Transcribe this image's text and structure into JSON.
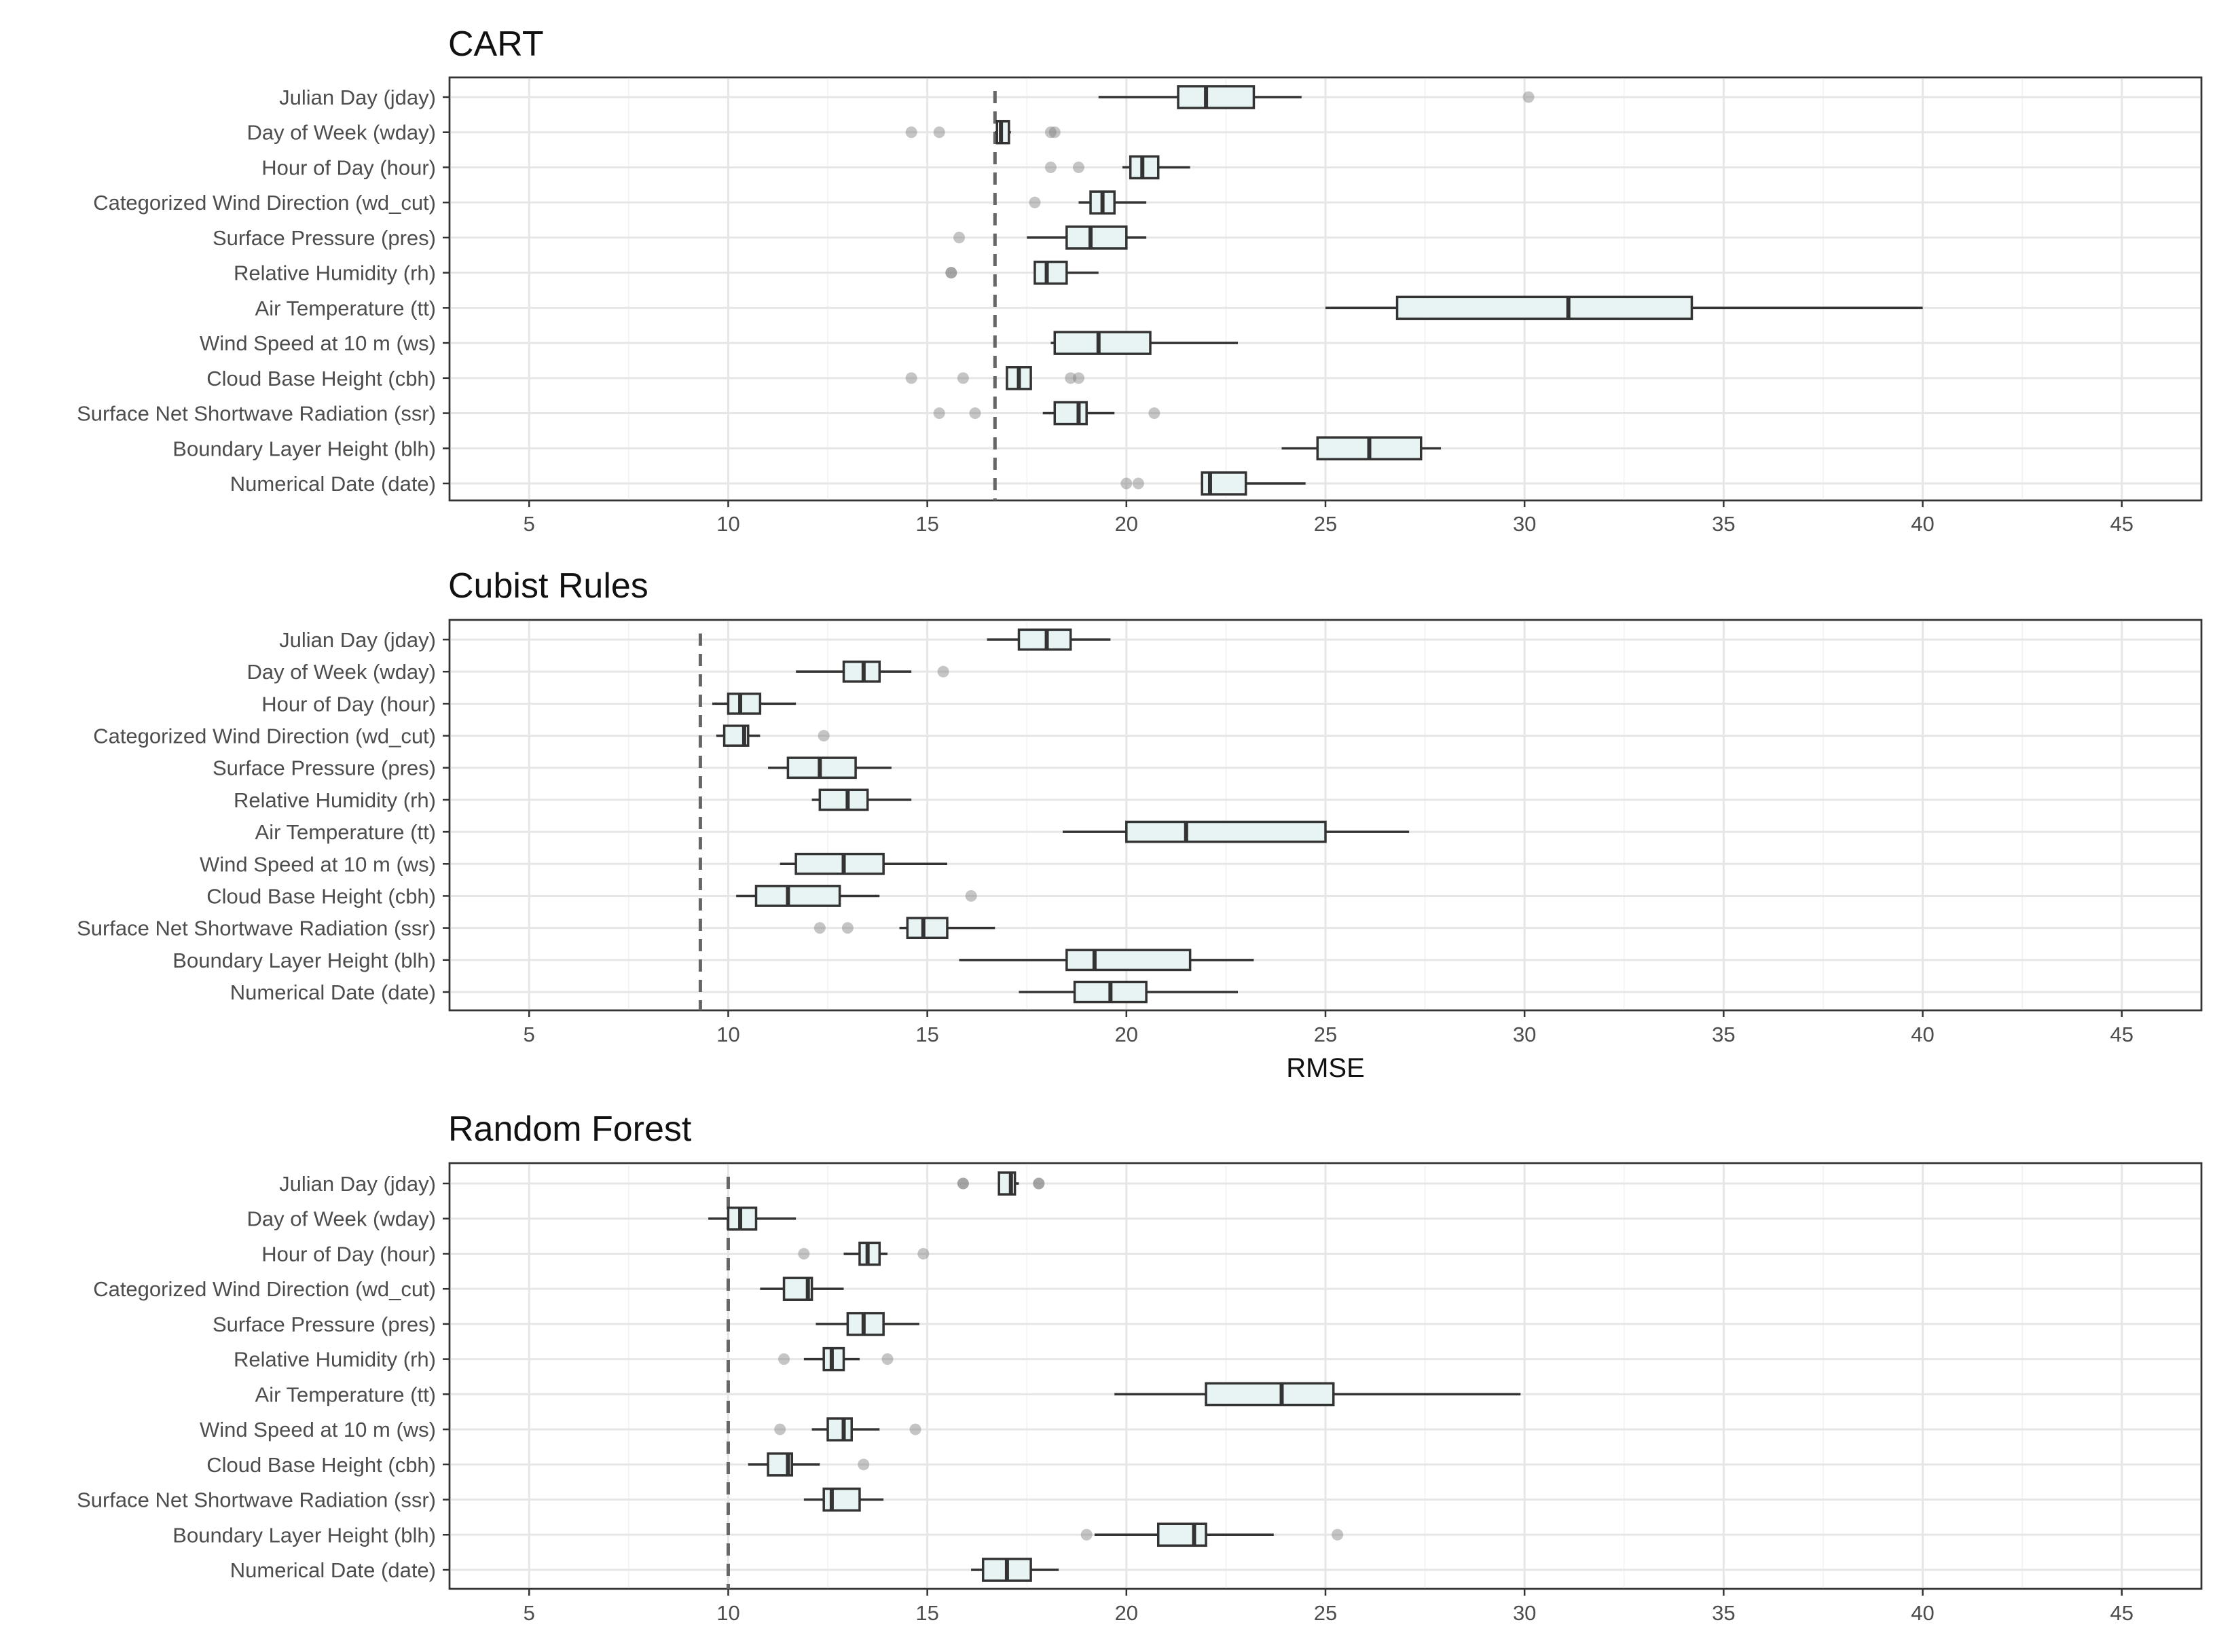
{
  "chart_data": {
    "type": "boxplot",
    "xlabel": "RMSE",
    "xlim": [
      3,
      47
    ],
    "x_ticks": [
      5,
      10,
      15,
      20,
      25,
      30,
      35,
      40,
      45
    ],
    "box_fill": "#e8f4f4",
    "box_stroke": "#333333",
    "reference_line_color": "#666666",
    "categories": [
      "Julian Day (jday)",
      "Day of Week (wday)",
      "Hour of Day (hour)",
      "Categorized Wind Direction (wd_cut)",
      "Surface Pressure (pres)",
      "Relative Humidity (rh)",
      "Air Temperature (tt)",
      "Wind Speed at 10 m (ws)",
      "Cloud Base Height (cbh)",
      "Surface Net Shortwave Radiation (ssr)",
      "Boundary Layer Height (blh)",
      "Numerical Date (date)"
    ],
    "panels": [
      {
        "title": "CART",
        "reference_line": 16.7,
        "boxes": [
          {
            "min": 19.3,
            "q1": 21.3,
            "median": 22.0,
            "q3": 23.2,
            "max": 24.4,
            "outliers": [
              30.1
            ]
          },
          {
            "min": 16.7,
            "q1": 16.75,
            "median": 16.85,
            "q3": 17.05,
            "max": 17.1,
            "outliers": [
              14.6,
              15.3,
              18.1,
              18.2
            ]
          },
          {
            "min": 19.9,
            "q1": 20.1,
            "median": 20.4,
            "q3": 20.8,
            "max": 21.6,
            "outliers": [
              18.1,
              18.8
            ]
          },
          {
            "min": 18.8,
            "q1": 19.1,
            "median": 19.4,
            "q3": 19.7,
            "max": 20.5,
            "outliers": [
              17.7
            ]
          },
          {
            "min": 17.5,
            "q1": 18.5,
            "median": 19.1,
            "q3": 20.0,
            "max": 20.5,
            "outliers": [
              15.8
            ]
          },
          {
            "min": 17.7,
            "q1": 17.7,
            "median": 18.0,
            "q3": 18.5,
            "max": 19.3,
            "outliers": [
              15.6,
              15.6
            ]
          },
          {
            "min": 25.0,
            "q1": 26.8,
            "median": 31.1,
            "q3": 34.2,
            "max": 40.0,
            "outliers": []
          },
          {
            "min": 18.1,
            "q1": 18.2,
            "median": 19.3,
            "q3": 20.6,
            "max": 22.8,
            "outliers": []
          },
          {
            "min": 17.0,
            "q1": 17.0,
            "median": 17.3,
            "q3": 17.6,
            "max": 17.6,
            "outliers": [
              14.6,
              15.9,
              18.6,
              18.8
            ]
          },
          {
            "min": 17.9,
            "q1": 18.2,
            "median": 18.8,
            "q3": 19.0,
            "max": 19.7,
            "outliers": [
              15.3,
              16.2,
              20.7
            ]
          },
          {
            "min": 23.9,
            "q1": 24.8,
            "median": 26.1,
            "q3": 27.4,
            "max": 27.9,
            "outliers": []
          },
          {
            "min": 21.9,
            "q1": 21.9,
            "median": 22.1,
            "q3": 23.0,
            "max": 24.5,
            "outliers": [
              20.0,
              20.3
            ]
          }
        ]
      },
      {
        "title": "Cubist Rules",
        "reference_line": 9.3,
        "boxes": [
          {
            "min": 16.5,
            "q1": 17.3,
            "median": 18.0,
            "q3": 18.6,
            "max": 19.6,
            "outliers": []
          },
          {
            "min": 11.7,
            "q1": 12.9,
            "median": 13.4,
            "q3": 13.8,
            "max": 14.6,
            "outliers": [
              15.4
            ]
          },
          {
            "min": 9.6,
            "q1": 10.0,
            "median": 10.3,
            "q3": 10.8,
            "max": 11.7,
            "outliers": []
          },
          {
            "min": 9.7,
            "q1": 9.9,
            "median": 10.4,
            "q3": 10.5,
            "max": 10.8,
            "outliers": [
              12.4
            ]
          },
          {
            "min": 11.0,
            "q1": 11.5,
            "median": 12.3,
            "q3": 13.2,
            "max": 14.1,
            "outliers": []
          },
          {
            "min": 12.1,
            "q1": 12.3,
            "median": 13.0,
            "q3": 13.5,
            "max": 14.6,
            "outliers": []
          },
          {
            "min": 18.4,
            "q1": 20.0,
            "median": 21.5,
            "q3": 25.0,
            "max": 27.1,
            "outliers": []
          },
          {
            "min": 11.3,
            "q1": 11.7,
            "median": 12.9,
            "q3": 13.9,
            "max": 15.5,
            "outliers": []
          },
          {
            "min": 10.2,
            "q1": 10.7,
            "median": 11.5,
            "q3": 12.8,
            "max": 13.8,
            "outliers": [
              16.1
            ]
          },
          {
            "min": 14.3,
            "q1": 14.5,
            "median": 14.9,
            "q3": 15.5,
            "max": 16.7,
            "outliers": [
              12.3,
              13.0
            ]
          },
          {
            "min": 15.8,
            "q1": 18.5,
            "median": 19.2,
            "q3": 21.6,
            "max": 23.2,
            "outliers": []
          },
          {
            "min": 17.3,
            "q1": 18.7,
            "median": 19.6,
            "q3": 20.5,
            "max": 22.8,
            "outliers": []
          }
        ]
      },
      {
        "title": "Random Forest",
        "reference_line": 10.0,
        "boxes": [
          {
            "min": 16.8,
            "q1": 16.8,
            "median": 17.1,
            "q3": 17.2,
            "max": 17.3,
            "outliers": [
              15.9,
              15.9,
              17.8,
              17.8
            ]
          },
          {
            "min": 9.5,
            "q1": 10.0,
            "median": 10.3,
            "q3": 10.7,
            "max": 11.7,
            "outliers": []
          },
          {
            "min": 12.9,
            "q1": 13.3,
            "median": 13.5,
            "q3": 13.8,
            "max": 14.0,
            "outliers": [
              11.9,
              14.9
            ]
          },
          {
            "min": 10.8,
            "q1": 11.4,
            "median": 12.0,
            "q3": 12.1,
            "max": 12.9,
            "outliers": []
          },
          {
            "min": 12.2,
            "q1": 13.0,
            "median": 13.4,
            "q3": 13.9,
            "max": 14.8,
            "outliers": []
          },
          {
            "min": 11.9,
            "q1": 12.4,
            "median": 12.6,
            "q3": 12.9,
            "max": 13.3,
            "outliers": [
              11.4,
              14.0
            ]
          },
          {
            "min": 19.7,
            "q1": 22.0,
            "median": 23.9,
            "q3": 25.2,
            "max": 29.9,
            "outliers": []
          },
          {
            "min": 12.1,
            "q1": 12.5,
            "median": 12.9,
            "q3": 13.1,
            "max": 13.8,
            "outliers": [
              11.3,
              14.7
            ]
          },
          {
            "min": 10.5,
            "q1": 11.0,
            "median": 11.5,
            "q3": 11.6,
            "max": 12.3,
            "outliers": [
              13.4
            ]
          },
          {
            "min": 11.9,
            "q1": 12.4,
            "median": 12.6,
            "q3": 13.3,
            "max": 13.9,
            "outliers": []
          },
          {
            "min": 19.2,
            "q1": 20.8,
            "median": 21.7,
            "q3": 22.0,
            "max": 23.7,
            "outliers": [
              19.0,
              25.3
            ]
          },
          {
            "min": 16.1,
            "q1": 16.4,
            "median": 17.0,
            "q3": 17.6,
            "max": 18.3,
            "outliers": []
          }
        ]
      }
    ]
  }
}
